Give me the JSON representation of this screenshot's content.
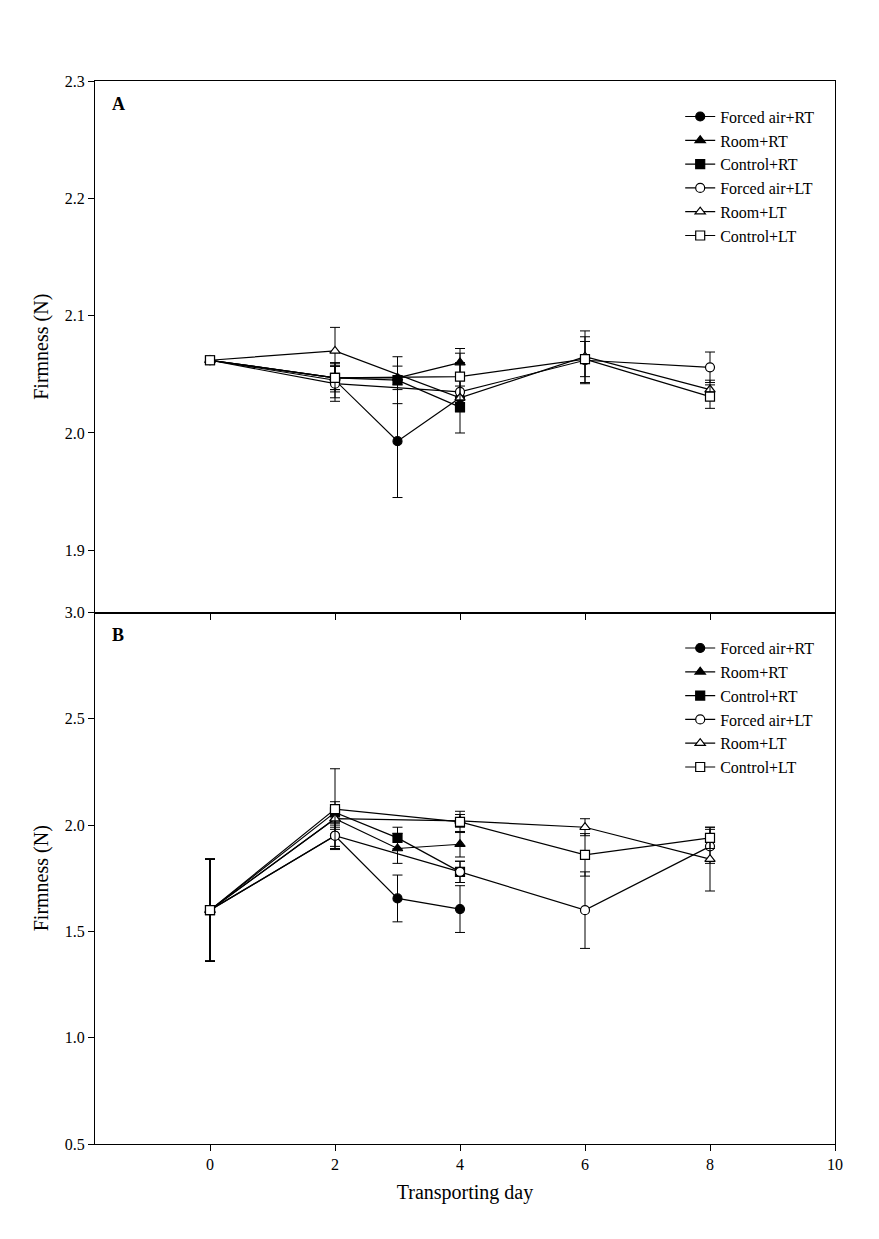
{
  "chart_data": [
    {
      "type": "line",
      "title": "A",
      "ylabel": "Firmness (N)",
      "xlim": [
        -1.84,
        10
      ],
      "xticks": [
        0,
        2,
        4,
        6,
        8,
        10
      ],
      "ylim": [
        1.847,
        2.3
      ],
      "yticks": [
        1.9,
        {
          "value": 2,
          "label": "2.0"
        },
        2.1,
        2.2,
        2.3
      ],
      "tick_labels": "y",
      "legend": "top right",
      "series": [
        {
          "name": "Forced air+RT",
          "color": "#000000",
          "marker": "circle",
          "x": [
            0,
            2,
            3,
            4
          ],
          "values": [
            2.062,
            2.045,
            1.993,
            2.03
          ],
          "errors": [
            0,
            0.015,
            0.048,
            0.01
          ]
        },
        {
          "name": "Room+RT",
          "color": "#000000",
          "marker": "triangle-up",
          "x": [
            0,
            2,
            3,
            4
          ],
          "values": [
            2.062,
            2.047,
            2.047,
            2.06
          ],
          "errors": [
            0,
            0.01,
            0.01,
            0.012
          ]
        },
        {
          "name": "Control+RT",
          "color": "#000000",
          "marker": "square",
          "x": [
            0,
            2,
            3,
            4
          ],
          "values": [
            2.062,
            2.047,
            2.045,
            2.022
          ],
          "errors": [
            0,
            0.01,
            0.02,
            0.004
          ]
        },
        {
          "name": "Forced air+LT",
          "color": "#000000",
          "marker": "circle-open",
          "x": [
            0,
            2,
            4,
            6,
            8
          ],
          "values": [
            2.062,
            2.042,
            2.035,
            2.062,
            2.056
          ],
          "errors": [
            0,
            0.015,
            0.01,
            0.02,
            0.013
          ]
        },
        {
          "name": "Room+LT",
          "color": "#000000",
          "marker": "triangle-up-open",
          "x": [
            0,
            2,
            4,
            6,
            8
          ],
          "values": [
            2.062,
            2.07,
            2.03,
            2.065,
            2.037
          ],
          "errors": [
            0,
            0.02,
            0.03,
            0.022,
            0.008
          ]
        },
        {
          "name": "Control+LT",
          "color": "#000000",
          "marker": "square-open",
          "x": [
            0,
            2,
            4,
            6,
            8
          ],
          "values": [
            2.062,
            2.047,
            2.048,
            2.063,
            2.031
          ],
          "errors": [
            0,
            0.012,
            0.02,
            0.015,
            0.01
          ]
        }
      ]
    },
    {
      "type": "line",
      "title": "B",
      "xlabel": "Transporting day",
      "ylabel": "Firmness (N)",
      "xlim": [
        -1.84,
        10
      ],
      "xticks": [
        0,
        2,
        4,
        6,
        8,
        10
      ],
      "ylim": [
        0.5,
        3
      ],
      "yticks": [
        0.5,
        {
          "value": 1,
          "label": "1.0"
        },
        1.5,
        {
          "value": 2,
          "label": "2.0"
        },
        2.5,
        {
          "value": 3,
          "label": "3.0"
        }
      ],
      "legend": "top right",
      "series": [
        {
          "name": "Forced air+RT",
          "color": "#000000",
          "marker": "circle",
          "x": [
            0,
            2,
            3,
            4
          ],
          "values": [
            1.6,
            1.95,
            1.655,
            1.605
          ],
          "errors": [
            0.24,
            0.06,
            0.11,
            0.11
          ]
        },
        {
          "name": "Room+RT",
          "color": "#000000",
          "marker": "triangle-up",
          "x": [
            0,
            2,
            3,
            4
          ],
          "values": [
            1.6,
            2.03,
            1.89,
            1.91
          ],
          "errors": [
            0.24,
            0.05,
            0.07,
            0.06
          ]
        },
        {
          "name": "Control+RT",
          "color": "#000000",
          "marker": "square",
          "x": [
            0,
            2,
            3,
            4
          ],
          "values": [
            1.6,
            2.06,
            1.94,
            1.78
          ],
          "errors": [
            0.24,
            0.05,
            0.05,
            0.05
          ]
        },
        {
          "name": "Forced air+LT",
          "color": "#000000",
          "marker": "circle-open",
          "x": [
            0,
            2,
            4,
            6,
            8
          ],
          "values": [
            1.6,
            1.95,
            1.78,
            1.6,
            1.9
          ],
          "errors": [
            0.24,
            0.05,
            0.05,
            0.18,
            0.08
          ]
        },
        {
          "name": "Room+LT",
          "color": "#000000",
          "marker": "triangle-up-open",
          "x": [
            0,
            2,
            4,
            6,
            8
          ],
          "values": [
            1.6,
            2.03,
            2.02,
            1.99,
            1.84
          ],
          "errors": [
            0.24,
            0.04,
            0.03,
            0.04,
            0.15
          ]
        },
        {
          "name": "Control+LT",
          "color": "#000000",
          "marker": "square-open",
          "x": [
            0,
            2,
            4,
            6,
            8
          ],
          "values": [
            1.6,
            2.075,
            2.015,
            1.86,
            1.94
          ],
          "errors": [
            0.24,
            0.19,
            0.05,
            0.1,
            0.05
          ]
        }
      ]
    }
  ]
}
